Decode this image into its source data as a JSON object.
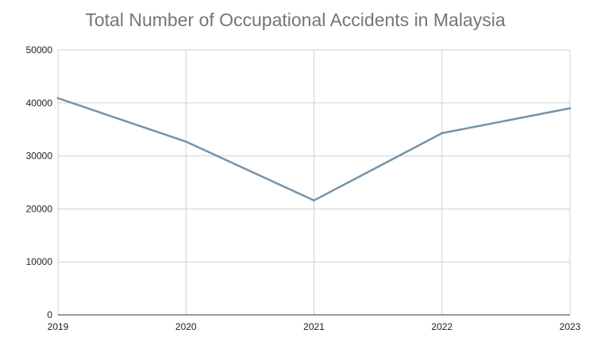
{
  "chart_data": {
    "type": "line",
    "title": "Total Number of Occupational Accidents in Malaysia",
    "xlabel": "",
    "ylabel": "",
    "categories": [
      "2019",
      "2020",
      "2021",
      "2022",
      "2023"
    ],
    "series": [
      {
        "values": [
          40900,
          32700,
          21600,
          34300,
          39000
        ],
        "color": "#7493a9"
      }
    ],
    "ylim": [
      0,
      50000
    ],
    "yticks": [
      0,
      10000,
      20000,
      30000,
      40000,
      50000
    ],
    "grid": true,
    "legend": "none"
  }
}
